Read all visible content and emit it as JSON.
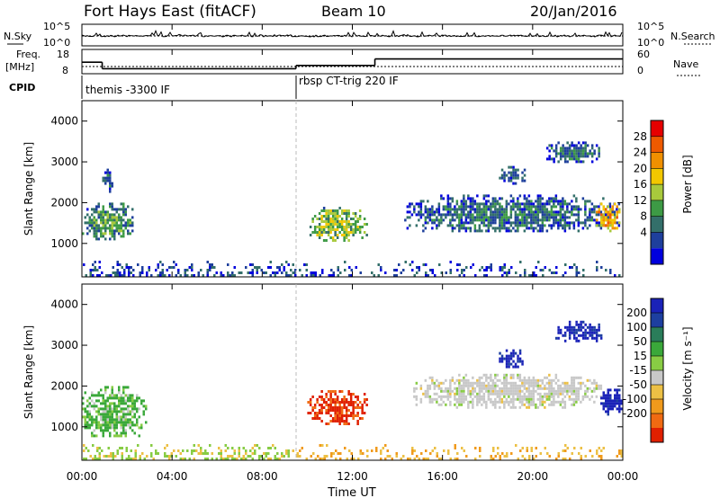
{
  "header": {
    "station": "Fort Hays East (fitACF)",
    "beam": "Beam 10",
    "date": "20/Jan/2016"
  },
  "strip_panel": {
    "left_label": "N.Sky",
    "right_label": "N.Search",
    "left_ticks": [
      "10^5",
      "10^0"
    ],
    "right_ticks": [
      "10^5",
      "10^0"
    ]
  },
  "freq_panel": {
    "left_label_top": "Freq.",
    "left_label_unit": "[MHz]",
    "right_label": "Nave",
    "left_ticks": [
      "18",
      "8"
    ],
    "right_ticks": [
      "60",
      "0"
    ]
  },
  "cpid": {
    "label": "CPID",
    "segments": [
      "themis -3300 IF",
      "rbsp CT-trig 220 IF"
    ]
  },
  "power_panel": {
    "ylabel": "Slant Range [km]",
    "yticks": [
      "4000",
      "3000",
      "2000",
      "1000"
    ],
    "colorbar_label": "Power [dB]",
    "colorbar_ticks": [
      "28",
      "24",
      "20",
      "16",
      "12",
      "8",
      "4"
    ],
    "colors": [
      "#0000dd",
      "#1e3f9c",
      "#336f6a",
      "#3d9a45",
      "#a8c93c",
      "#f2c700",
      "#f09000",
      "#ee5a00",
      "#e60000"
    ]
  },
  "velocity_panel": {
    "ylabel": "Slant Range [km]",
    "yticks": [
      "4000",
      "3000",
      "2000",
      "1000"
    ],
    "colorbar_label": "Velocity [m s⁻¹]",
    "colorbar_ticks": [
      "200",
      "100",
      "50",
      "15",
      "-15",
      "-50",
      "-100",
      "-200"
    ],
    "colors": [
      "#1a22b8",
      "#1d3fa0",
      "#2a7d5a",
      "#3aa83a",
      "#88cc44",
      "#c8c8c8",
      "#ecc045",
      "#f09a1c",
      "#f06a12",
      "#e02000"
    ]
  },
  "xaxis": {
    "label": "Time UT",
    "ticks": [
      "00:00",
      "04:00",
      "08:00",
      "12:00",
      "16:00",
      "20:00",
      "00:00"
    ]
  },
  "chart_data": {
    "type": "heatmap",
    "title": "Fort Hays East (fitACF)",
    "x_range_hours": [
      0,
      24
    ],
    "y_range_km": [
      180,
      4500
    ],
    "cpid_change_hour": 9.5,
    "freq_step_hours": [
      [
        0,
        0.9,
        14
      ],
      [
        0.9,
        9.5,
        10
      ],
      [
        9.5,
        13,
        12
      ],
      [
        13,
        24,
        16
      ]
    ],
    "nave_level": 20,
    "power_blobs": [
      {
        "t0": 0.0,
        "t1": 2.2,
        "r0": 1100,
        "r1": 2000,
        "dB": 14
      },
      {
        "t0": 0.9,
        "t1": 1.3,
        "r0": 2300,
        "r1": 2900,
        "dB": 10
      },
      {
        "t0": 10.0,
        "t1": 12.6,
        "r0": 1100,
        "r1": 1900,
        "dB": 18
      },
      {
        "t0": 14.3,
        "t1": 23.8,
        "r0": 1300,
        "r1": 2200,
        "dB": 12
      },
      {
        "t0": 22.8,
        "t1": 23.9,
        "r0": 1300,
        "r1": 2000,
        "dB": 26
      },
      {
        "t0": 18.5,
        "t1": 19.6,
        "r0": 2500,
        "r1": 2900,
        "dB": 10
      },
      {
        "t0": 20.5,
        "t1": 23.0,
        "r0": 3000,
        "r1": 3500,
        "dB": 12
      }
    ],
    "velocity_blobs": [
      {
        "t0": 0.0,
        "t1": 2.8,
        "r0": 800,
        "r1": 2000,
        "v": 30
      },
      {
        "t0": 10.0,
        "t1": 12.6,
        "r0": 1100,
        "r1": 1900,
        "v": -150
      },
      {
        "t0": 14.6,
        "t1": 23.0,
        "r0": 1500,
        "r1": 2300,
        "v": 0
      },
      {
        "t0": 23.0,
        "t1": 23.9,
        "r0": 1300,
        "r1": 2000,
        "v": 150
      },
      {
        "t0": 18.5,
        "t1": 19.6,
        "r0": 2500,
        "r1": 2900,
        "v": 200
      },
      {
        "t0": 21.0,
        "t1": 23.0,
        "r0": 3100,
        "r1": 3600,
        "v": 200
      }
    ]
  }
}
